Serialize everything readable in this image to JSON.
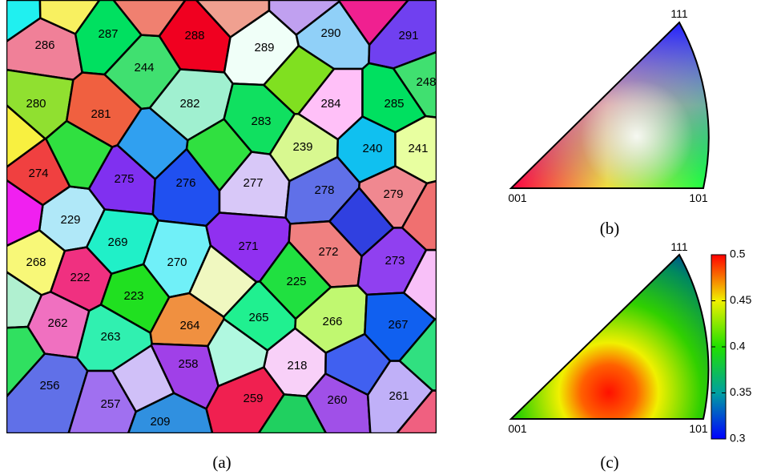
{
  "panels": [
    {
      "caption": "(a)",
      "grains": [
        {
          "label": "286",
          "color": "#f08098"
        },
        {
          "label": "287",
          "color": "#00e060"
        },
        {
          "label": "288",
          "color": "#f00020"
        },
        {
          "label": "289",
          "color": "#f0fff8"
        },
        {
          "label": "290",
          "color": "#90d0f8"
        },
        {
          "label": "291",
          "color": "#7040f0"
        },
        {
          "label": "244",
          "color": "#40e070"
        },
        {
          "label": "248",
          "color": "#40e070"
        },
        {
          "label": "280",
          "color": "#90e030"
        },
        {
          "label": "281",
          "color": "#f06040"
        },
        {
          "label": "282",
          "color": "#a0f0d0"
        },
        {
          "label": "283",
          "color": "#10e060"
        },
        {
          "label": "284",
          "color": "#ffc0f8"
        },
        {
          "label": "285",
          "color": "#00e060"
        },
        {
          "label": "239",
          "color": "#d8f890"
        },
        {
          "label": "240",
          "color": "#10c0f0"
        },
        {
          "label": "241",
          "color": "#e8ffa0"
        },
        {
          "label": "274",
          "color": "#f04040"
        },
        {
          "label": "275",
          "color": "#8030f0"
        },
        {
          "label": "276",
          "color": "#2050f0"
        },
        {
          "label": "277",
          "color": "#d8c8f8"
        },
        {
          "label": "278",
          "color": "#6070e8"
        },
        {
          "label": "279",
          "color": "#f08890"
        },
        {
          "label": "229",
          "color": "#b0e8f8"
        },
        {
          "label": "269",
          "color": "#20f0c8"
        },
        {
          "label": "270",
          "color": "#70f0f8"
        },
        {
          "label": "271",
          "color": "#9030f0"
        },
        {
          "label": "272",
          "color": "#f08080"
        },
        {
          "label": "273",
          "color": "#9040f0"
        },
        {
          "label": "268",
          "color": "#f8f878"
        },
        {
          "label": "222",
          "color": "#f03080"
        },
        {
          "label": "223",
          "color": "#20e020"
        },
        {
          "label": "225",
          "color": "#20e040"
        },
        {
          "label": "262",
          "color": "#f070c0"
        },
        {
          "label": "263",
          "color": "#30f0b0"
        },
        {
          "label": "264",
          "color": "#f09040"
        },
        {
          "label": "265",
          "color": "#20f090"
        },
        {
          "label": "266",
          "color": "#c0f870"
        },
        {
          "label": "267",
          "color": "#1060f0"
        },
        {
          "label": "218",
          "color": "#f8d0f8"
        },
        {
          "label": "256",
          "color": "#6070e8"
        },
        {
          "label": "257",
          "color": "#a070f0"
        },
        {
          "label": "258",
          "color": "#a040e8"
        },
        {
          "label": "259",
          "color": "#f02050"
        },
        {
          "label": "260",
          "color": "#a050e8"
        },
        {
          "label": "261",
          "color": "#c0b0f8"
        },
        {
          "label": "209",
          "color": "#3090e0"
        }
      ]
    },
    {
      "caption": "(b)",
      "corners": [
        "111",
        "001",
        "101"
      ]
    },
    {
      "caption": "(c)",
      "corners": [
        "111",
        "001",
        "101"
      ],
      "colorbar": {
        "lim": [
          0.3,
          0.5
        ],
        "ticks": [
          0.3,
          0.35,
          0.4,
          0.45,
          0.5
        ]
      }
    }
  ]
}
